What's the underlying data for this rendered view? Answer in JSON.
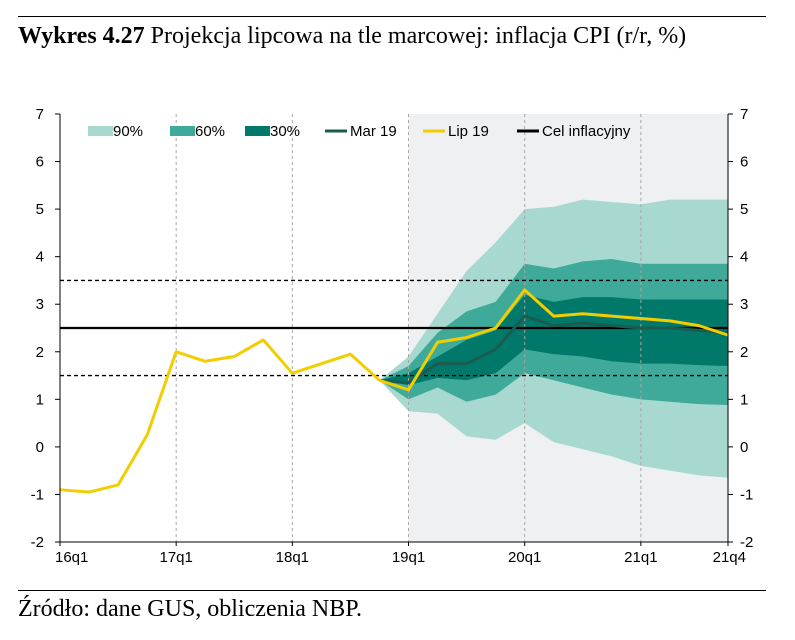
{
  "caption": {
    "label": "Wykres 4.27",
    "title": "Projekcja lipcowa na tle marcowej: inflacja CPI (r/r, %)"
  },
  "source": "Źródło: dane GUS, obliczenia NBP.",
  "colors": {
    "band90": "#a8d9d0",
    "band60": "#3faa9a",
    "band30": "#00796b",
    "mar19": "#1a5c4f",
    "lip19": "#f2cd00",
    "target": "#000000",
    "projection_shade": "#eef0f2",
    "grid": "#a6a6a6"
  },
  "chart_data": {
    "type": "fan",
    "ylim": [
      -2,
      7
    ],
    "xlim": [
      0,
      23
    ],
    "yticks": [
      -2,
      -1,
      0,
      1,
      2,
      3,
      4,
      5,
      6,
      7
    ],
    "xticks": [
      {
        "x": 0,
        "label": "16q1"
      },
      {
        "x": 4,
        "label": "17q1"
      },
      {
        "x": 8,
        "label": "18q1"
      },
      {
        "x": 12,
        "label": "19q1"
      },
      {
        "x": 16,
        "label": "20q1"
      },
      {
        "x": 20,
        "label": "21q1"
      },
      {
        "x": 23,
        "label": "21q4"
      }
    ],
    "projection_start": 12,
    "legend": [
      {
        "label": "90%",
        "kind": "area",
        "key": "band90"
      },
      {
        "label": "60%",
        "kind": "area",
        "key": "band60"
      },
      {
        "label": "30%",
        "kind": "area",
        "key": "band30"
      },
      {
        "label": "Mar 19",
        "kind": "line",
        "key": "mar19"
      },
      {
        "label": "Lip 19",
        "kind": "line",
        "key": "lip19"
      },
      {
        "label": "Cel inflacyjny",
        "kind": "line",
        "key": "target"
      }
    ],
    "target": 2.5,
    "tolerance_band": [
      1.5,
      3.5
    ],
    "bands_x": [
      11,
      12,
      13,
      14,
      15,
      16,
      17,
      18,
      19,
      20,
      21,
      22,
      23
    ],
    "band90": {
      "upper": [
        1.4,
        1.9,
        2.8,
        3.7,
        4.3,
        5.0,
        5.05,
        5.2,
        5.15,
        5.1,
        5.2,
        5.2,
        5.2
      ],
      "lower": [
        1.4,
        0.75,
        0.7,
        0.22,
        0.15,
        0.5,
        0.1,
        -0.05,
        -0.2,
        -0.4,
        -0.5,
        -0.6,
        -0.65
      ]
    },
    "band60": {
      "upper": [
        1.4,
        1.7,
        2.4,
        2.85,
        3.05,
        3.85,
        3.75,
        3.9,
        3.95,
        3.85,
        3.85,
        3.85,
        3.85
      ],
      "lower": [
        1.4,
        1.0,
        1.25,
        0.95,
        1.1,
        1.55,
        1.4,
        1.25,
        1.1,
        1.0,
        0.95,
        0.9,
        0.88
      ]
    },
    "band30": {
      "upper": [
        1.4,
        1.55,
        1.9,
        2.25,
        2.45,
        3.2,
        3.05,
        3.15,
        3.15,
        3.1,
        3.1,
        3.1,
        3.1
      ],
      "lower": [
        1.4,
        1.3,
        1.45,
        1.4,
        1.55,
        2.05,
        1.95,
        1.9,
        1.8,
        1.75,
        1.75,
        1.72,
        1.7
      ]
    },
    "series": [
      {
        "name": "Mar 19",
        "key": "mar19",
        "x": [
          11,
          12,
          13,
          14,
          15,
          16,
          17,
          18,
          19,
          20,
          21,
          22,
          23
        ],
        "y": [
          1.4,
          1.35,
          1.75,
          1.75,
          2.05,
          2.75,
          2.55,
          2.6,
          2.55,
          2.5,
          2.5,
          2.45,
          2.4
        ]
      },
      {
        "name": "Lip 19",
        "key": "lip19",
        "x": [
          0,
          1,
          2,
          3,
          4,
          5,
          6,
          7,
          8,
          9,
          10,
          11,
          12,
          13,
          14,
          15,
          16,
          17,
          18,
          19,
          20,
          21,
          22,
          23
        ],
        "y": [
          -0.9,
          -0.95,
          -0.8,
          0.25,
          2.0,
          1.8,
          1.9,
          2.25,
          1.55,
          1.75,
          1.95,
          1.4,
          1.2,
          2.2,
          2.3,
          2.5,
          3.3,
          2.75,
          2.8,
          2.75,
          2.7,
          2.65,
          2.55,
          2.35
        ]
      }
    ]
  }
}
